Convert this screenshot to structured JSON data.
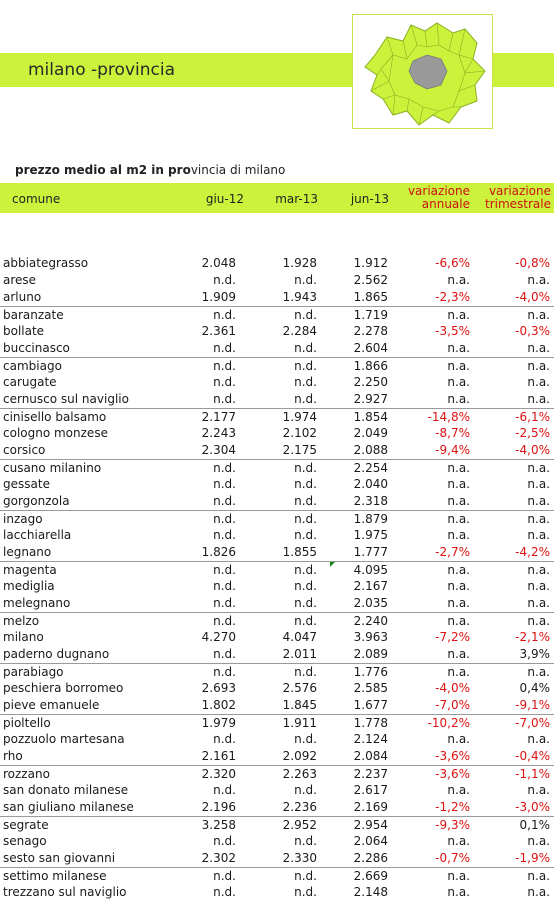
{
  "banner": {
    "title": "milano -provincia"
  },
  "subtitle": {
    "bold": "prezzo medio al m2 in pro",
    "rest": "vincia di milano"
  },
  "header": {
    "comune": "comune",
    "c1": "giu-12",
    "c2": "mar-13",
    "c3": "jun-13",
    "c4_line1": "variazione",
    "c4_line2": "annuale",
    "c5_line1": "variazione",
    "c5_line2": "trimestrale"
  },
  "colors": {
    "accent": "#ccf23c",
    "negative": "#dd1111",
    "map_fill": "#ccf23c",
    "map_center": "#999999"
  },
  "rows": [
    {
      "name": "abbiategrasso",
      "v1": "2.048",
      "v2": "1.928",
      "v3": "1.912",
      "v4": "-6,6%",
      "v5": "-0,8%"
    },
    {
      "name": "arese",
      "v1": "n.d.",
      "v2": "n.d.",
      "v3": "2.562",
      "v4": "n.a.",
      "v5": "n.a."
    },
    {
      "name": "arluno",
      "v1": "1.909",
      "v2": "1.943",
      "v3": "1.865",
      "v4": "-2,3%",
      "v5": "-4,0%"
    },
    {
      "name": "baranzate",
      "v1": "n.d.",
      "v2": "n.d.",
      "v3": "1.719",
      "v4": "n.a.",
      "v5": "n.a."
    },
    {
      "name": "bollate",
      "v1": "2.361",
      "v2": "2.284",
      "v3": "2.278",
      "v4": "-3,5%",
      "v5": "-0,3%"
    },
    {
      "name": "buccinasco",
      "v1": "n.d.",
      "v2": "n.d.",
      "v3": "2.604",
      "v4": "n.a.",
      "v5": "n.a."
    },
    {
      "name": "cambiago",
      "v1": "n.d.",
      "v2": "n.d.",
      "v3": "1.866",
      "v4": "n.a.",
      "v5": "n.a."
    },
    {
      "name": "carugate",
      "v1": "n.d.",
      "v2": "n.d.",
      "v3": "2.250",
      "v4": "n.a.",
      "v5": "n.a."
    },
    {
      "name": "cernusco sul naviglio",
      "v1": "n.d.",
      "v2": "n.d.",
      "v3": "2.927",
      "v4": "n.a.",
      "v5": "n.a."
    },
    {
      "name": "cinisello balsamo",
      "v1": "2.177",
      "v2": "1.974",
      "v3": "1.854",
      "v4": "-14,8%",
      "v5": "-6,1%"
    },
    {
      "name": "cologno monzese",
      "v1": "2.243",
      "v2": "2.102",
      "v3": "2.049",
      "v4": "-8,7%",
      "v5": "-2,5%"
    },
    {
      "name": "corsico",
      "v1": "2.304",
      "v2": "2.175",
      "v3": "2.088",
      "v4": "-9,4%",
      "v5": "-4,0%"
    },
    {
      "name": "cusano milanino",
      "v1": "n.d.",
      "v2": "n.d.",
      "v3": "2.254",
      "v4": "n.a.",
      "v5": "n.a."
    },
    {
      "name": "gessate",
      "v1": "n.d.",
      "v2": "n.d.",
      "v3": "2.040",
      "v4": "n.a.",
      "v5": "n.a."
    },
    {
      "name": "gorgonzola",
      "v1": "n.d.",
      "v2": "n.d.",
      "v3": "2.318",
      "v4": "n.a.",
      "v5": "n.a."
    },
    {
      "name": "inzago",
      "v1": "n.d.",
      "v2": "n.d.",
      "v3": "1.879",
      "v4": "n.a.",
      "v5": "n.a."
    },
    {
      "name": "lacchiarella",
      "v1": "n.d.",
      "v2": "n.d.",
      "v3": "1.975",
      "v4": "n.a.",
      "v5": "n.a."
    },
    {
      "name": "legnano",
      "v1": "1.826",
      "v2": "1.855",
      "v3": "1.777",
      "v4": "-2,7%",
      "v5": "-4,2%"
    },
    {
      "name": "magenta",
      "v1": "n.d.",
      "v2": "n.d.",
      "v3": "4.095",
      "v4": "n.a.",
      "v5": "n.a."
    },
    {
      "name": "mediglia",
      "v1": "n.d.",
      "v2": "n.d.",
      "v3": "2.167",
      "v4": "n.a.",
      "v5": "n.a."
    },
    {
      "name": "melegnano",
      "v1": "n.d.",
      "v2": "n.d.",
      "v3": "2.035",
      "v4": "n.a.",
      "v5": "n.a."
    },
    {
      "name": "melzo",
      "v1": "n.d.",
      "v2": "n.d.",
      "v3": "2.240",
      "v4": "n.a.",
      "v5": "n.a."
    },
    {
      "name": "milano",
      "v1": "4.270",
      "v2": "4.047",
      "v3": "3.963",
      "v4": "-7,2%",
      "v5": "-2,1%"
    },
    {
      "name": "paderno dugnano",
      "v1": "n.d.",
      "v2": "2.011",
      "v3": "2.089",
      "v4": "n.a.",
      "v5": "3,9%"
    },
    {
      "name": "parabiago",
      "v1": "n.d.",
      "v2": "n.d.",
      "v3": "1.776",
      "v4": "n.a.",
      "v5": "n.a."
    },
    {
      "name": "peschiera borromeo",
      "v1": "2.693",
      "v2": "2.576",
      "v3": "2.585",
      "v4": "-4,0%",
      "v5": "0,4%"
    },
    {
      "name": "pieve emanuele",
      "v1": "1.802",
      "v2": "1.845",
      "v3": "1.677",
      "v4": "-7,0%",
      "v5": "-9,1%"
    },
    {
      "name": "pioltello",
      "v1": "1.979",
      "v2": "1.911",
      "v3": "1.778",
      "v4": "-10,2%",
      "v5": "-7,0%"
    },
    {
      "name": "pozzuolo martesana",
      "v1": "n.d.",
      "v2": "n.d.",
      "v3": "2.124",
      "v4": "n.a.",
      "v5": "n.a."
    },
    {
      "name": "rho",
      "v1": "2.161",
      "v2": "2.092",
      "v3": "2.084",
      "v4": "-3,6%",
      "v5": "-0,4%"
    },
    {
      "name": "rozzano",
      "v1": "2.320",
      "v2": "2.263",
      "v3": "2.237",
      "v4": "-3,6%",
      "v5": "-1,1%"
    },
    {
      "name": "san donato milanese",
      "v1": "n.d.",
      "v2": "n.d.",
      "v3": "2.617",
      "v4": "n.a.",
      "v5": "n.a."
    },
    {
      "name": "san giuliano milanese",
      "v1": "2.196",
      "v2": "2.236",
      "v3": "2.169",
      "v4": "-1,2%",
      "v5": "-3,0%"
    },
    {
      "name": "segrate",
      "v1": "3.258",
      "v2": "2.952",
      "v3": "2.954",
      "v4": "-9,3%",
      "v5": "0,1%"
    },
    {
      "name": "senago",
      "v1": "n.d.",
      "v2": "n.d.",
      "v3": "2.064",
      "v4": "n.a.",
      "v5": "n.a."
    },
    {
      "name": "sesto san giovanni",
      "v1": "2.302",
      "v2": "2.330",
      "v3": "2.286",
      "v4": "-0,7%",
      "v5": "-1,9%"
    },
    {
      "name": "settimo milanese",
      "v1": "n.d.",
      "v2": "n.d.",
      "v3": "2.669",
      "v4": "n.a.",
      "v5": "n.a."
    },
    {
      "name": "trezzano sul naviglio",
      "v1": "n.d.",
      "v2": "n.d.",
      "v3": "2.148",
      "v4": "n.a.",
      "v5": "n.a."
    }
  ]
}
